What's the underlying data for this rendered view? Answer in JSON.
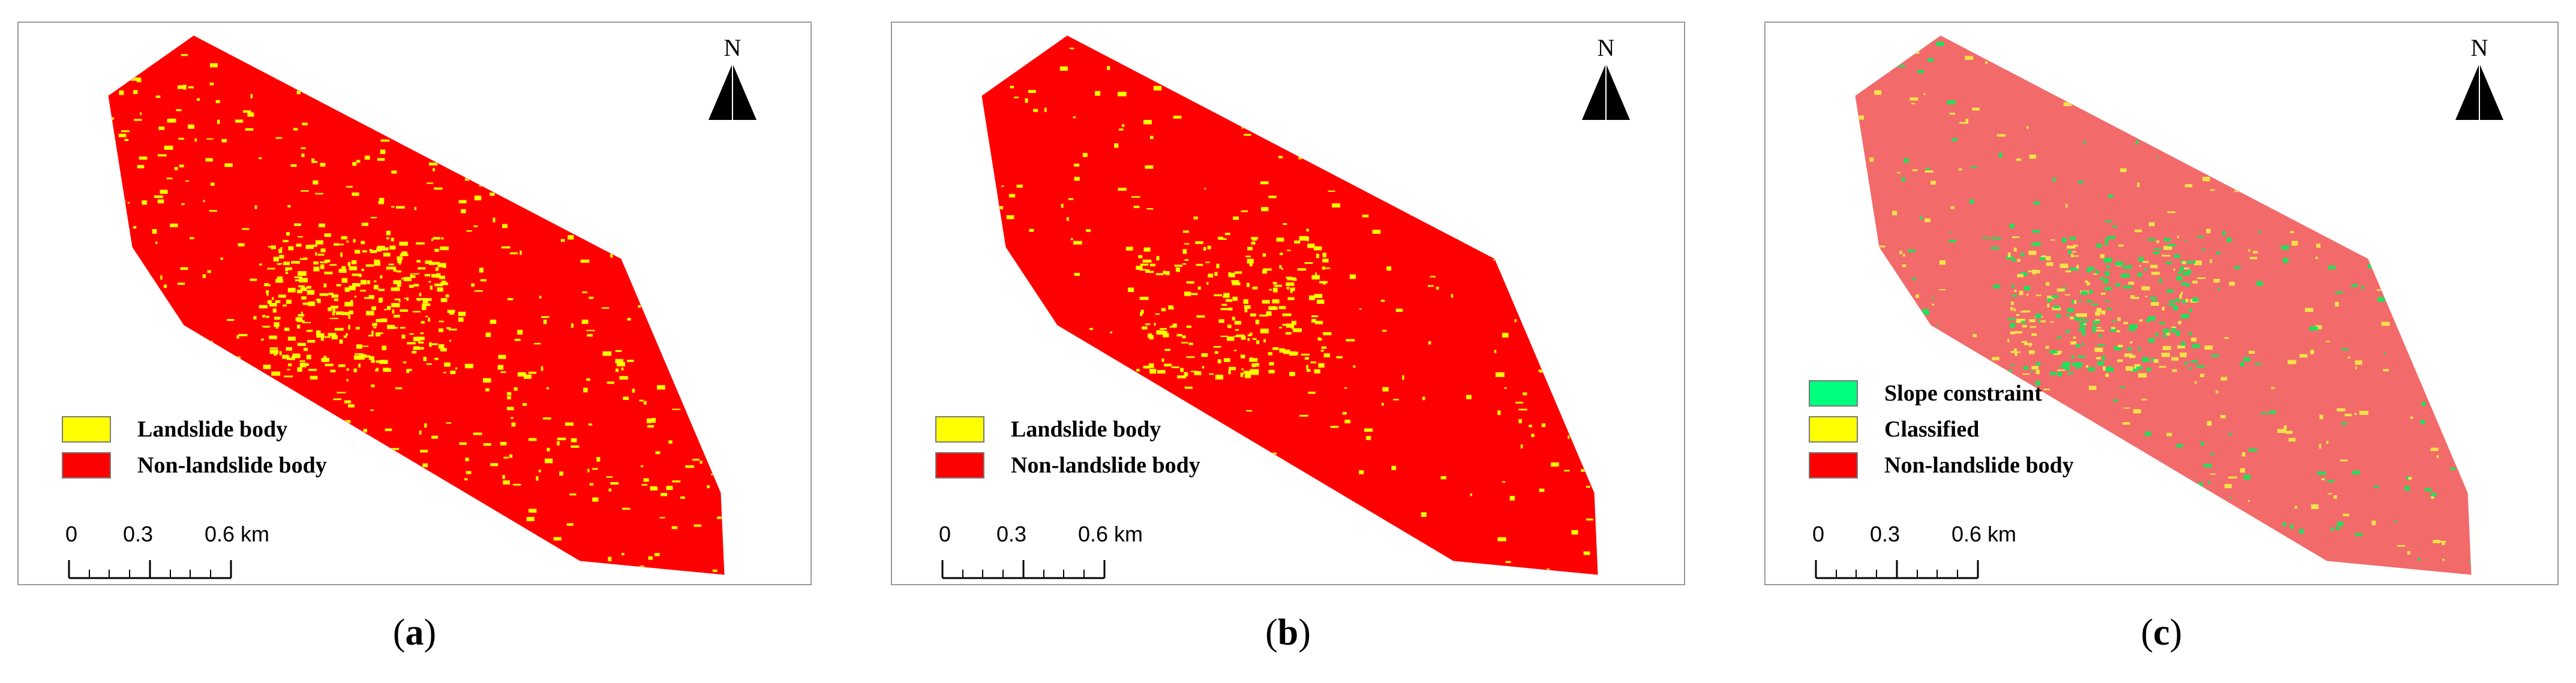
{
  "panels": [
    {
      "id": "a",
      "caption_open": "(",
      "caption_letter": "a",
      "caption_close": ")",
      "north_label": "N",
      "base_color": "#ff0000",
      "speckle_colors": [
        "#ffff00"
      ],
      "legend": [
        {
          "label": "Landslide body",
          "color": "#ffff00"
        },
        {
          "label": "Non-landslide body",
          "color": "#ff0000"
        }
      ],
      "scale_ticks": [
        "0",
        "0.3",
        "0.6 km"
      ]
    },
    {
      "id": "b",
      "caption_open": "(",
      "caption_letter": "b",
      "caption_close": ")",
      "north_label": "N",
      "base_color": "#ff0000",
      "speckle_colors": [
        "#ffff00"
      ],
      "legend": [
        {
          "label": "Landslide body",
          "color": "#ffff00"
        },
        {
          "label": "Non-landslide body",
          "color": "#ff0000"
        }
      ],
      "scale_ticks": [
        "0",
        "0.3",
        "0.6 km"
      ]
    },
    {
      "id": "c",
      "caption_open": "(",
      "caption_letter": "c",
      "caption_close": ")",
      "north_label": "N",
      "base_color": "#f26a6a",
      "speckle_colors": [
        "#22e05a",
        "#f4e24a"
      ],
      "legend": [
        {
          "label": "Slope constraint",
          "color": "#00ff7f"
        },
        {
          "label": "Classified",
          "color": "#ffff00"
        },
        {
          "label": "Non-landslide body",
          "color": "#ff0000"
        }
      ],
      "scale_ticks": [
        "0",
        "0.3",
        "0.6 km"
      ]
    }
  ]
}
